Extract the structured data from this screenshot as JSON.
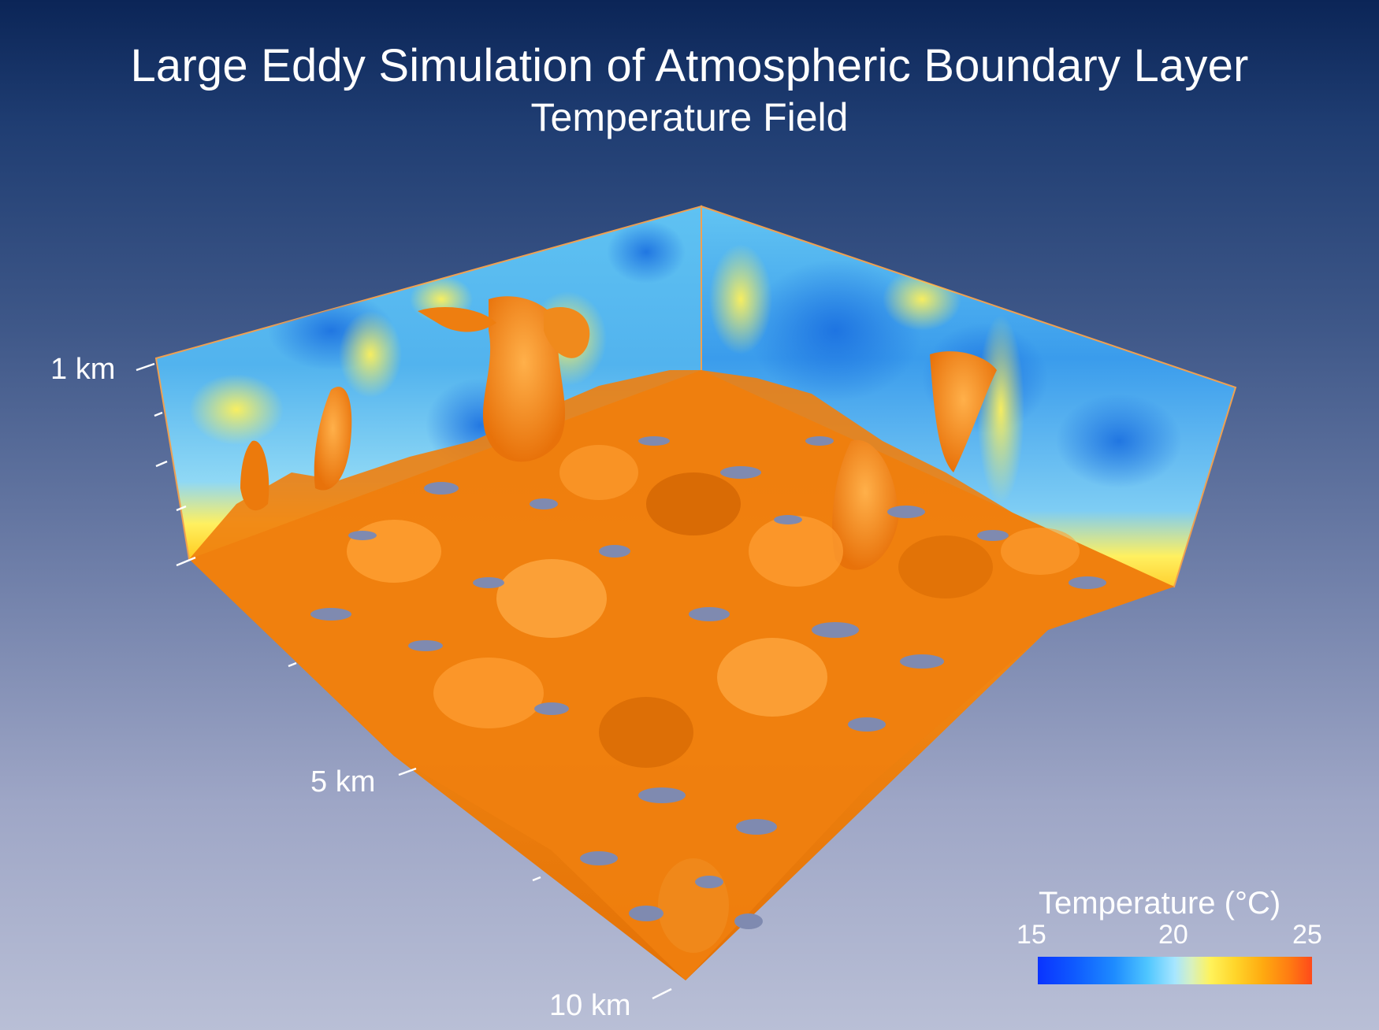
{
  "header": {
    "title": "Large Eddy Simulation of Atmospheric Boundary Layer",
    "subtitle": "Temperature Field"
  },
  "axes": {
    "height_label": "1 km",
    "distance_label_mid": "5 km",
    "distance_label_far": "10 km"
  },
  "legend": {
    "title": "Temperature (°C)",
    "min": "15",
    "mid": "20",
    "max": "25",
    "colors": [
      "#0a33ff",
      "#4fc6ff",
      "#fff25a",
      "#ff7a12",
      "#ff4a1a"
    ]
  },
  "scene": {
    "wall_colors": [
      "#4fb4ec",
      "#1f7fe6",
      "#fff05a"
    ],
    "surface_colors": [
      "#f07a08",
      "#ff9a2a",
      "#c75a00"
    ]
  }
}
